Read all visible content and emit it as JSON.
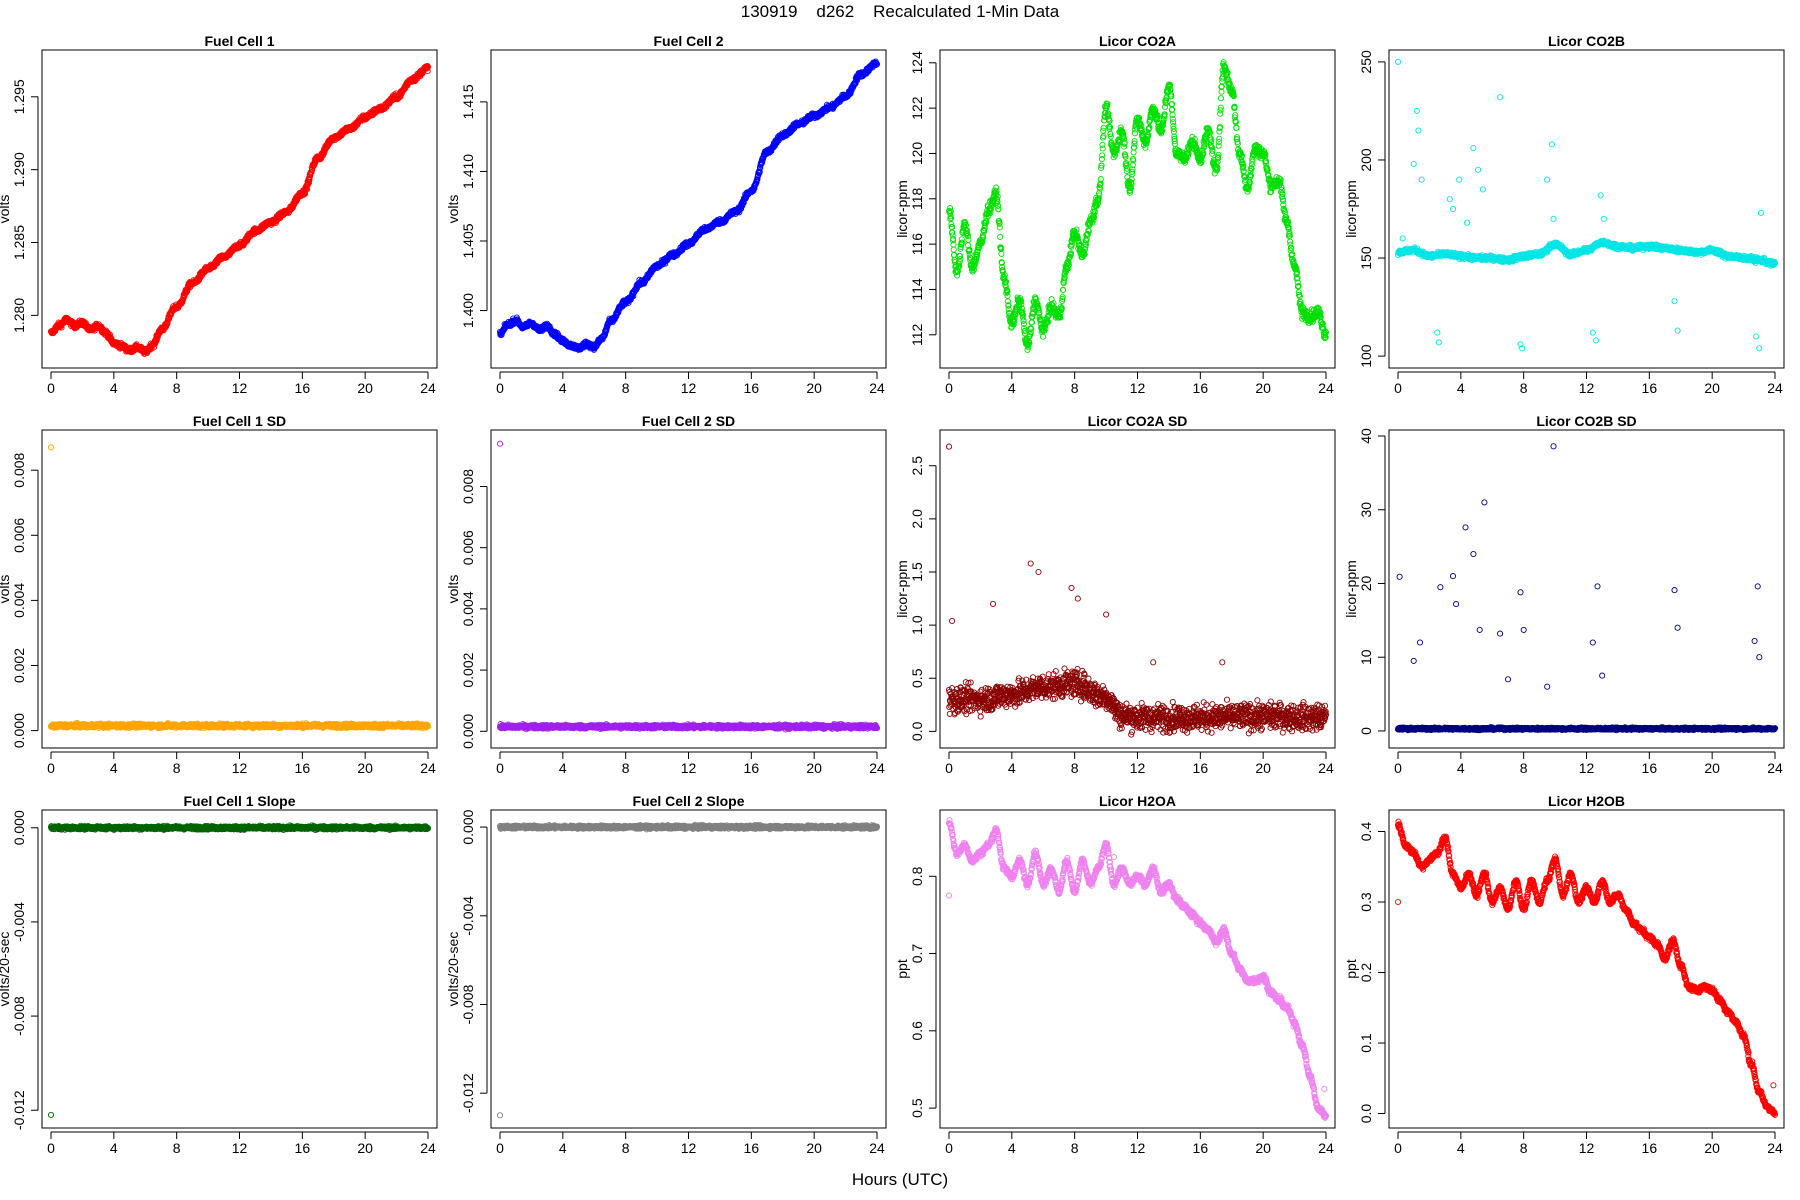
{
  "figure": {
    "title": "130919    d262    Recalculated 1-Min Data",
    "xlabel": "Hours (UTC)"
  },
  "chart_data": [
    {
      "type": "scatter",
      "title": "Fuel Cell 1",
      "ylabel": "volts",
      "xlabel": "",
      "color": "#ff0000",
      "xlim": [
        0,
        24
      ],
      "ylim": [
        1.2768,
        1.2978
      ],
      "xticks": [
        0,
        4,
        8,
        12,
        16,
        20,
        24
      ],
      "yticks": [
        1.28,
        1.285,
        1.29,
        1.295
      ],
      "yfmt": 3,
      "x": [
        0,
        0.5,
        1,
        1.5,
        2,
        2.5,
        3,
        3.5,
        4,
        4.5,
        5,
        5.5,
        6,
        6.5,
        7,
        8,
        9,
        10,
        11,
        12,
        13,
        14,
        15,
        16,
        17,
        18,
        19,
        20,
        21,
        22,
        23,
        24
      ],
      "y": [
        1.2788,
        1.2793,
        1.2797,
        1.2793,
        1.2795,
        1.279,
        1.2793,
        1.2788,
        1.2781,
        1.2779,
        1.2776,
        1.2778,
        1.2775,
        1.278,
        1.279,
        1.2806,
        1.2822,
        1.2832,
        1.284,
        1.2848,
        1.2858,
        1.2864,
        1.2871,
        1.2884,
        1.2908,
        1.2922,
        1.2928,
        1.2936,
        1.2942,
        1.295,
        1.2962,
        1.297
      ],
      "points_per_hour": 60,
      "noise": 0.00018
    },
    {
      "type": "scatter",
      "title": "Fuel Cell 2",
      "ylabel": "volts",
      "xlabel": "",
      "color": "#0000ff",
      "xlim": [
        0,
        24
      ],
      "ylim": [
        1.3963,
        1.4183
      ],
      "xticks": [
        0,
        4,
        8,
        12,
        16,
        20,
        24
      ],
      "yticks": [
        1.4,
        1.405,
        1.41,
        1.415
      ],
      "yfmt": 3,
      "x": [
        0,
        0.5,
        1,
        1.5,
        2,
        2.5,
        3,
        3.5,
        4,
        4.5,
        5,
        5.5,
        6,
        6.5,
        7,
        8,
        9,
        10,
        11,
        12,
        13,
        14,
        15,
        16,
        17,
        18,
        19,
        20,
        21,
        22,
        23,
        24
      ],
      "y": [
        1.3983,
        1.399,
        1.3993,
        1.3988,
        1.3991,
        1.3986,
        1.3989,
        1.3983,
        1.3978,
        1.3975,
        1.3973,
        1.3976,
        1.3974,
        1.398,
        1.3992,
        1.4006,
        1.402,
        1.4032,
        1.404,
        1.4048,
        1.4058,
        1.4064,
        1.4071,
        1.4086,
        1.4114,
        1.4126,
        1.4134,
        1.414,
        1.4146,
        1.4154,
        1.417,
        1.4178
      ],
      "points_per_hour": 60,
      "noise": 0.00018
    },
    {
      "type": "scatter",
      "title": "Licor CO2A",
      "ylabel": "licor-ppm",
      "xlabel": "",
      "color": "#00e000",
      "xlim": [
        0,
        24
      ],
      "ylim": [
        110.8,
        124.3
      ],
      "xticks": [
        0,
        4,
        8,
        12,
        16,
        20,
        24
      ],
      "yticks": [
        112,
        114,
        116,
        118,
        120,
        122,
        124
      ],
      "yfmt": 0,
      "x": [
        0,
        0.5,
        1,
        1.5,
        2,
        2.5,
        3,
        3.5,
        4,
        4.5,
        5,
        5.5,
        6,
        6.5,
        7,
        7.5,
        8,
        8.5,
        9,
        9.5,
        10,
        10.5,
        11,
        11.5,
        12,
        12.5,
        13,
        13.5,
        14,
        14.5,
        15,
        15.5,
        16,
        16.5,
        17,
        17.5,
        18,
        18.5,
        19,
        19.5,
        20,
        20.5,
        21,
        21.5,
        22,
        22.5,
        23,
        23.5,
        24
      ],
      "y": [
        117.5,
        114.8,
        116.8,
        115.0,
        116.0,
        117.5,
        118.2,
        114.5,
        112.5,
        113.5,
        111.5,
        113.5,
        112.2,
        113.2,
        112.8,
        115.0,
        116.5,
        115.5,
        117.0,
        118.0,
        122.0,
        120.0,
        121.0,
        118.5,
        121.5,
        120.5,
        122.0,
        121.0,
        123.0,
        120.0,
        119.8,
        120.5,
        119.8,
        121.0,
        119.2,
        123.8,
        122.8,
        120.0,
        118.5,
        120.2,
        120.0,
        118.6,
        118.8,
        117.0,
        115.0,
        113.0,
        112.8,
        113.0,
        112.0
      ],
      "points_per_hour": 60,
      "noise": 0.25
    },
    {
      "type": "scatter",
      "title": "Licor CO2B",
      "ylabel": "licor-ppm",
      "xlabel": "",
      "color": "#00e5e5",
      "xlim": [
        0,
        24
      ],
      "ylim": [
        97,
        253
      ],
      "xticks": [
        0,
        4,
        8,
        12,
        16,
        20,
        24
      ],
      "yticks": [
        100,
        150,
        200,
        250
      ],
      "yfmt": 0,
      "x": [
        0,
        1,
        2,
        3,
        4,
        5,
        6,
        7,
        8,
        9,
        10,
        11,
        12,
        13,
        14,
        15,
        16,
        17,
        18,
        19,
        20,
        21,
        22,
        23,
        24
      ],
      "y": [
        153,
        154,
        151,
        152,
        151,
        150,
        150,
        149,
        151,
        152,
        157,
        152,
        154,
        158,
        156,
        155,
        156,
        155,
        154,
        153,
        154,
        151,
        150,
        149,
        147
      ],
      "points_per_hour": 60,
      "noise": 1.2,
      "outliers_x": [
        0.0,
        0.3,
        1.0,
        1.2,
        1.3,
        1.5,
        2.5,
        2.6,
        3.3,
        3.5,
        3.9,
        4.4,
        4.8,
        5.1,
        5.4,
        6.5,
        7.8,
        7.9,
        9.5,
        9.8,
        9.9,
        12.4,
        12.6,
        12.9,
        13.1,
        17.6,
        17.8,
        22.8,
        23.0,
        23.1
      ],
      "outliers_y": [
        250,
        160,
        198,
        225,
        215,
        190,
        112,
        107,
        180,
        175,
        190,
        168,
        206,
        195,
        185,
        232,
        106,
        104,
        190,
        208,
        170,
        112,
        108,
        182,
        170,
        128,
        113,
        110,
        104,
        173
      ]
    },
    {
      "type": "scatter",
      "title": "Fuel Cell 1 SD",
      "ylabel": "volts",
      "xlabel": "",
      "color": "#ffa500",
      "xlim": [
        0,
        24
      ],
      "ylim": [
        -0.00035,
        0.00905
      ],
      "xticks": [
        0,
        4,
        8,
        12,
        16,
        20,
        24
      ],
      "yticks": [
        0.0,
        0.002,
        0.004,
        0.006,
        0.008
      ],
      "yfmt": 3,
      "x": [
        0,
        24
      ],
      "y": [
        0.00015,
        0.00015
      ],
      "points_per_hour": 60,
      "noise": 6e-05,
      "outliers_x": [
        0.0
      ],
      "outliers_y": [
        0.0087
      ]
    },
    {
      "type": "scatter",
      "title": "Fuel Cell 2 SD",
      "ylabel": "volts",
      "xlabel": "",
      "color": "#a020f0",
      "xlim": [
        0,
        24
      ],
      "ylim": [
        -0.00035,
        0.00965
      ],
      "xticks": [
        0,
        4,
        8,
        12,
        16,
        20,
        24
      ],
      "yticks": [
        0.0,
        0.002,
        0.004,
        0.006,
        0.008
      ],
      "yfmt": 3,
      "x": [
        0,
        24
      ],
      "y": [
        0.00015,
        0.00015
      ],
      "points_per_hour": 60,
      "noise": 6e-05,
      "outliers_x": [
        0.0
      ],
      "outliers_y": [
        0.0094
      ]
    },
    {
      "type": "scatter",
      "title": "Licor CO2A SD",
      "ylabel": "licor-ppm",
      "xlabel": "",
      "color": "#8b0000",
      "xlim": [
        0,
        24
      ],
      "ylim": [
        -0.1,
        2.78
      ],
      "xticks": [
        0,
        4,
        8,
        12,
        16,
        20,
        24
      ],
      "yticks": [
        0.0,
        0.5,
        1.0,
        1.5,
        2.0,
        2.5
      ],
      "yfmt": 1,
      "x": [
        0,
        2,
        4,
        6,
        8,
        10,
        11,
        12,
        16,
        20,
        24
      ],
      "y": [
        0.3,
        0.3,
        0.35,
        0.42,
        0.45,
        0.32,
        0.15,
        0.13,
        0.13,
        0.14,
        0.13
      ],
      "points_per_hour": 60,
      "noise": 0.12,
      "outliers_x": [
        0.0,
        0.2,
        2.8,
        5.2,
        5.7,
        7.8,
        8.2,
        10.0,
        13.0,
        17.4
      ],
      "outliers_y": [
        2.68,
        1.04,
        1.2,
        1.58,
        1.5,
        1.35,
        1.25,
        1.1,
        0.65,
        0.65
      ]
    },
    {
      "type": "scatter",
      "title": "Licor CO2B SD",
      "ylabel": "licor-ppm",
      "xlabel": "",
      "color": "#000080",
      "xlim": [
        0,
        24
      ],
      "ylim": [
        -1.5,
        40
      ],
      "xticks": [
        0,
        4,
        8,
        12,
        16,
        20,
        24
      ],
      "yticks": [
        0,
        10,
        20,
        30,
        40
      ],
      "yfmt": 0,
      "x": [
        0,
        24
      ],
      "y": [
        0.3,
        0.3
      ],
      "points_per_hour": 60,
      "noise": 0.15,
      "outliers_x": [
        0.1,
        1.0,
        1.4,
        2.7,
        3.5,
        3.7,
        4.3,
        4.8,
        5.2,
        5.5,
        6.5,
        7.0,
        7.8,
        8.0,
        9.5,
        9.9,
        12.4,
        12.7,
        13.0,
        17.6,
        17.8,
        22.7,
        22.9,
        23.0
      ],
      "outliers_y": [
        20.9,
        9.5,
        12.0,
        19.5,
        21.0,
        17.2,
        27.6,
        24.0,
        13.7,
        31.0,
        13.2,
        7.0,
        18.8,
        13.7,
        6.0,
        38.6,
        12.0,
        19.6,
        7.5,
        19.1,
        14.0,
        12.2,
        19.6,
        10.0
      ]
    },
    {
      "type": "scatter",
      "title": "Fuel Cell 1 Slope",
      "ylabel": "volts/20-sec",
      "xlabel": "",
      "color": "#006400",
      "xlim": [
        0,
        24
      ],
      "ylim": [
        -0.0125,
        0.0005
      ],
      "xticks": [
        0,
        4,
        8,
        12,
        16,
        20,
        24
      ],
      "yticks": [
        0.0,
        -0.004,
        -0.008,
        -0.012
      ],
      "yfmt": 3,
      "x": [
        0,
        24
      ],
      "y": [
        0.0,
        0.0
      ],
      "points_per_hour": 60,
      "noise": 7e-05,
      "outliers_x": [
        0.0
      ],
      "outliers_y": [
        -0.0122
      ]
    },
    {
      "type": "scatter",
      "title": "Fuel Cell 2 Slope",
      "ylabel": "volts/20-sec",
      "xlabel": "",
      "color": "#808080",
      "xlim": [
        0,
        24
      ],
      "ylim": [
        -0.0133,
        0.0005
      ],
      "xticks": [
        0,
        4,
        8,
        12,
        16,
        20,
        24
      ],
      "yticks": [
        0.0,
        -0.004,
        -0.008,
        -0.012
      ],
      "yfmt": 3,
      "x": [
        0,
        24
      ],
      "y": [
        0.0,
        0.0
      ],
      "points_per_hour": 60,
      "noise": 7e-05,
      "outliers_x": [
        0.0
      ],
      "outliers_y": [
        -0.013
      ]
    },
    {
      "type": "scatter",
      "title": "Licor H2OA",
      "ylabel": "ppt",
      "xlabel": "",
      "color": "#ee82ee",
      "xlim": [
        0,
        24
      ],
      "ylim": [
        0.482,
        0.878
      ],
      "xticks": [
        0,
        4,
        8,
        12,
        16,
        20,
        24
      ],
      "yticks": [
        0.5,
        0.6,
        0.7,
        0.8
      ],
      "yfmt": 1,
      "x": [
        0,
        0.5,
        1,
        1.5,
        2,
        2.5,
        3,
        3.5,
        4,
        4.5,
        5,
        5.5,
        6,
        6.5,
        7,
        7.5,
        8,
        8.5,
        9,
        9.5,
        10,
        10.5,
        11,
        11.5,
        12,
        12.5,
        13,
        13.5,
        14,
        14.5,
        15,
        15.5,
        16,
        16.5,
        17,
        17.5,
        18,
        18.5,
        19,
        19.5,
        20,
        20.5,
        21,
        21.5,
        22,
        22.5,
        23,
        23.5,
        24
      ],
      "y": [
        0.87,
        0.83,
        0.84,
        0.82,
        0.83,
        0.84,
        0.86,
        0.81,
        0.8,
        0.82,
        0.79,
        0.83,
        0.79,
        0.81,
        0.78,
        0.82,
        0.78,
        0.82,
        0.79,
        0.81,
        0.84,
        0.79,
        0.81,
        0.79,
        0.8,
        0.79,
        0.81,
        0.78,
        0.79,
        0.77,
        0.76,
        0.75,
        0.74,
        0.73,
        0.715,
        0.73,
        0.7,
        0.68,
        0.665,
        0.665,
        0.67,
        0.65,
        0.64,
        0.63,
        0.61,
        0.58,
        0.54,
        0.5,
        0.49
      ],
      "points_per_hour": 60,
      "noise": 0.004,
      "outliers_x": [
        0.0,
        10.5,
        23.9
      ],
      "outliers_y": [
        0.775,
        0.825,
        0.525
      ]
    },
    {
      "type": "scatter",
      "title": "Licor H2OB",
      "ylabel": "ppt",
      "xlabel": "",
      "color": "#ff0000",
      "xlim": [
        0,
        24
      ],
      "ylim": [
        -0.012,
        0.422
      ],
      "xticks": [
        0,
        4,
        8,
        12,
        16,
        20,
        24
      ],
      "yticks": [
        0.0,
        0.1,
        0.2,
        0.3,
        0.4
      ],
      "yfmt": 1,
      "x": [
        0,
        0.5,
        1,
        1.5,
        2,
        2.5,
        3,
        3.5,
        4,
        4.5,
        5,
        5.5,
        6,
        6.5,
        7,
        7.5,
        8,
        8.5,
        9,
        9.5,
        10,
        10.5,
        11,
        11.5,
        12,
        12.5,
        13,
        13.5,
        14,
        14.5,
        15,
        15.5,
        16,
        16.5,
        17,
        17.5,
        18,
        18.5,
        19,
        19.5,
        20,
        20.5,
        21,
        21.5,
        22,
        22.5,
        23,
        23.5,
        24
      ],
      "y": [
        0.41,
        0.38,
        0.37,
        0.35,
        0.36,
        0.37,
        0.39,
        0.34,
        0.32,
        0.34,
        0.31,
        0.34,
        0.3,
        0.32,
        0.29,
        0.33,
        0.29,
        0.33,
        0.3,
        0.33,
        0.36,
        0.31,
        0.34,
        0.3,
        0.32,
        0.3,
        0.33,
        0.3,
        0.31,
        0.29,
        0.27,
        0.26,
        0.25,
        0.24,
        0.22,
        0.245,
        0.21,
        0.18,
        0.175,
        0.18,
        0.175,
        0.16,
        0.145,
        0.13,
        0.11,
        0.07,
        0.03,
        0.01,
        0.0
      ],
      "points_per_hour": 60,
      "noise": 0.004,
      "outliers_x": [
        0.0,
        23.9
      ],
      "outliers_y": [
        0.3,
        0.04
      ]
    }
  ]
}
